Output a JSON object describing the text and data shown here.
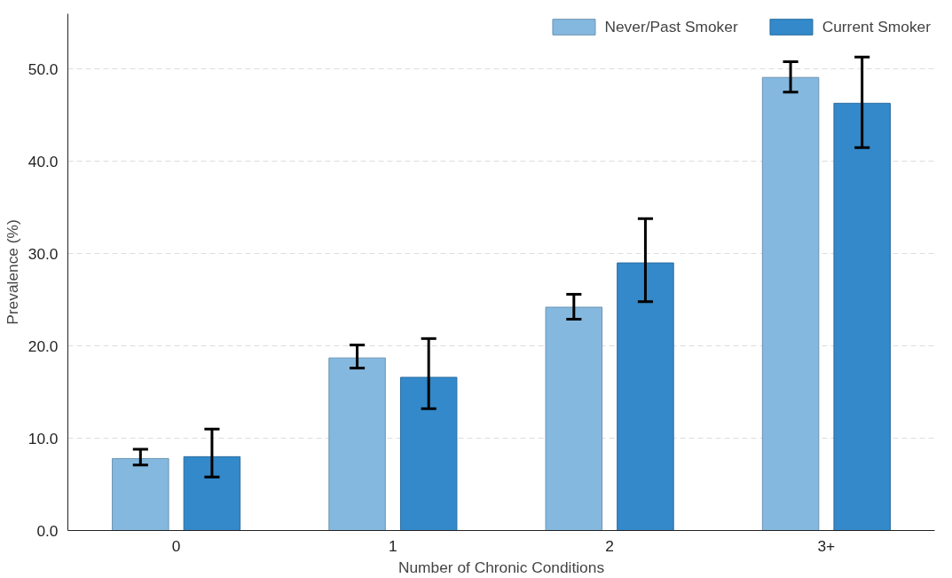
{
  "chart_data": {
    "type": "bar",
    "xlabel": "Number of Chronic Conditions",
    "ylabel": "Prevalence (%)",
    "categories": [
      "0",
      "1",
      "2",
      "3+"
    ],
    "series": [
      {
        "name": "Never/Past Smoker",
        "color": "#85b8df",
        "values": [
          7.8,
          18.7,
          24.2,
          49.1
        ],
        "errors": [
          [
            7.1,
            8.8
          ],
          [
            17.6,
            20.1
          ],
          [
            22.9,
            25.6
          ],
          [
            47.5,
            50.8
          ]
        ]
      },
      {
        "name": "Current Smoker",
        "color": "#3389c9",
        "values": [
          8.0,
          16.6,
          29.0,
          46.3
        ],
        "errors": [
          [
            5.8,
            11.0
          ],
          [
            13.2,
            20.8
          ],
          [
            24.8,
            33.8
          ],
          [
            41.5,
            51.3
          ]
        ]
      }
    ],
    "ylim": [
      0,
      56
    ],
    "yticks": [
      {
        "value": 0,
        "label": "0.0"
      },
      {
        "value": 10,
        "label": "10.0"
      },
      {
        "value": 20,
        "label": "20.0"
      },
      {
        "value": 30,
        "label": "30.0"
      },
      {
        "value": 40,
        "label": "40.0"
      },
      {
        "value": 50,
        "label": "50.0"
      }
    ],
    "grid": "y",
    "legend": "top right"
  }
}
